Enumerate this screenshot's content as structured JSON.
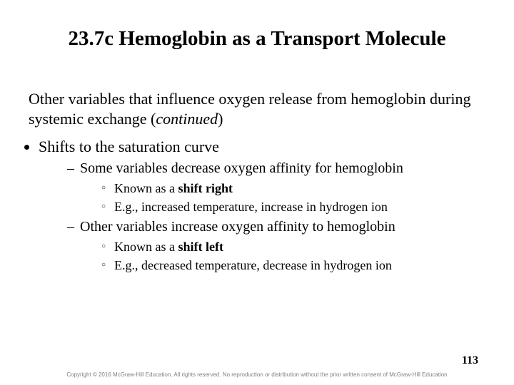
{
  "title": "23.7c Hemoglobin as a Transport Molecule",
  "intro_plain": "Other variables that influence oxygen release from hemoglobin during systemic exchange (",
  "intro_italic": "continued",
  "intro_close": ")",
  "b1": "Shifts to the saturation curve",
  "b1_1": "Some variables decrease oxygen affinity for hemoglobin",
  "b1_1_1a": "Known as a ",
  "b1_1_1b": "shift right",
  "b1_1_2": "E.g., increased temperature, increase in hydrogen ion",
  "b1_2": "Other variables increase oxygen affinity to hemoglobin",
  "b1_2_1a": "Known as a ",
  "b1_2_1b": "shift left",
  "b1_2_2": "E.g., decreased temperature, decrease in hydrogen ion",
  "page_number": "113",
  "copyright": "Copyright © 2016 McGraw-Hill Education. All rights reserved. No reproduction or distribution without the prior written consent of McGraw-Hill Education"
}
